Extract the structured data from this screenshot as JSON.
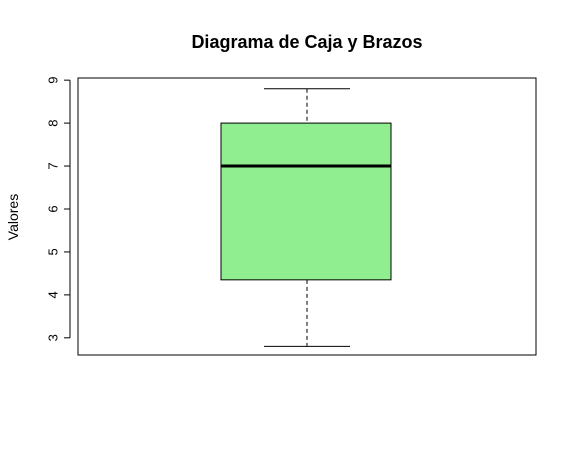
{
  "chart_data": {
    "type": "boxplot",
    "title": "Diagrama de Caja y Brazos",
    "xlabel": "",
    "ylabel": "Valores",
    "ylim": [
      2.6,
      9.05
    ],
    "yticks": [
      3,
      4,
      5,
      6,
      7,
      8,
      9
    ],
    "box": {
      "min": 2.8,
      "q1": 4.35,
      "median": 7.0,
      "q3": 8.0,
      "max": 8.8
    },
    "fill_color": "#90EE90",
    "grid": false
  }
}
